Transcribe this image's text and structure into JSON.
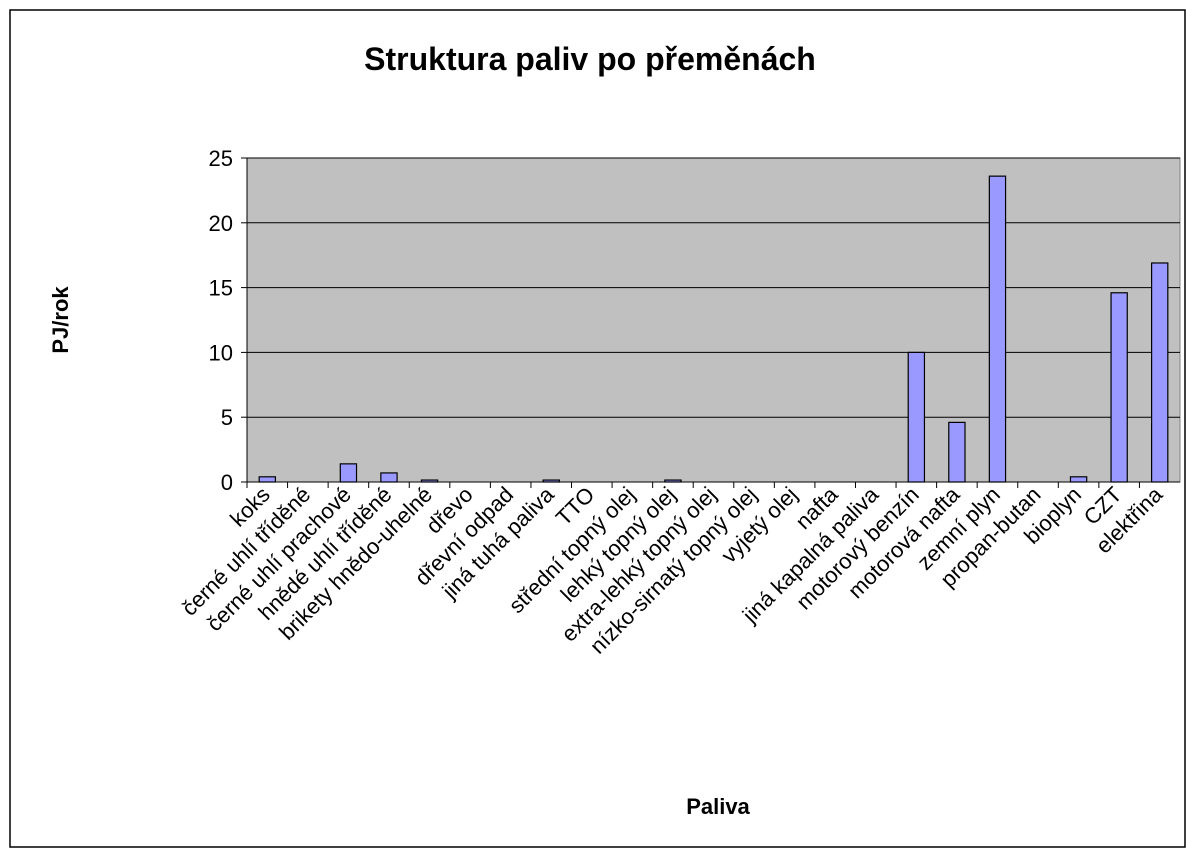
{
  "chart_data": {
    "type": "bar",
    "title": "Struktura paliv po přeměnách",
    "x_label": "Paliva",
    "y_label": "PJ/rok",
    "categories": [
      "koks",
      "černé uhlí tříděné",
      "černé uhlí prachové",
      "hnědé uhlí tříděné",
      "brikety hnědo-uhelné",
      "dřevo",
      "dřevní odpad",
      "jiná tuhá paliva",
      "TTO",
      "střední topný olej",
      "lehký topný olej",
      "extra-lehký topný olej",
      "nízko-sirnatý topný olej",
      "vyjetý olej",
      "nafta",
      "jiná kapalná paliva",
      "motorový benzín",
      "motorová nafta",
      "zemní plyn",
      "propan-butan",
      "bioplyn",
      "CZT",
      "elektřina"
    ],
    "values": [
      0.4,
      0,
      1.4,
      0.7,
      0.15,
      0,
      0,
      0.15,
      0,
      0,
      0.15,
      0,
      0,
      0,
      0,
      0,
      10,
      4.6,
      23.6,
      0,
      0.4,
      14.6,
      16.9
    ],
    "color": "#9999ff",
    "plot_background": "#c0c0c0",
    "ylim": [
      0,
      25
    ],
    "yticks": [
      0,
      5,
      10,
      15,
      20,
      25
    ],
    "grid": true
  }
}
